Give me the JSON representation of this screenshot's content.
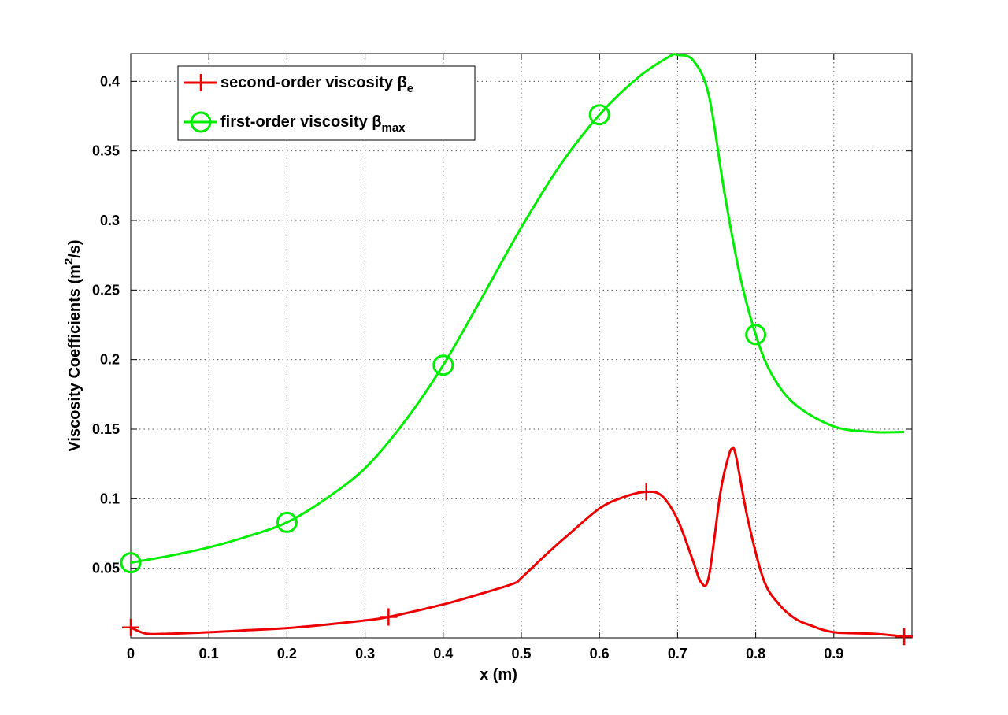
{
  "chart_data": {
    "type": "line",
    "title": "",
    "xlabel": "x (m)",
    "ylabel": {
      "main": "Viscosity Coefficients (m",
      "sup": "2",
      "tail": "/s)"
    },
    "xlim": [
      0,
      1
    ],
    "ylim": [
      0,
      0.42
    ],
    "xticks": [
      0,
      0.1,
      0.2,
      0.3,
      0.4,
      0.5,
      0.6,
      0.7,
      0.8,
      0.9
    ],
    "xtick_labels": [
      "0",
      "0.1",
      "0.2",
      "0.3",
      "0.4",
      "0.5",
      "0.6",
      "0.7",
      "0.8",
      "0.9"
    ],
    "yticks": [
      0.05,
      0.1,
      0.15,
      0.2,
      0.25,
      0.3,
      0.35,
      0.4
    ],
    "ytick_labels": [
      "0.05",
      "0.1",
      "0.15",
      "0.2",
      "0.25",
      "0.3",
      "0.35",
      "0.4"
    ],
    "grid": true,
    "legend_position": "top-left",
    "series": [
      {
        "name": "second-order viscosity β",
        "name_sub": "e",
        "color": "#ee0000",
        "marker": "plus",
        "x": [
          0,
          0.02,
          0.05,
          0.1,
          0.15,
          0.2,
          0.25,
          0.3,
          0.33,
          0.4,
          0.45,
          0.49,
          0.5,
          0.53,
          0.56,
          0.6,
          0.63,
          0.66,
          0.68,
          0.7,
          0.72,
          0.73,
          0.74,
          0.755,
          0.765,
          0.77,
          0.775,
          0.79,
          0.81,
          0.83,
          0.85,
          0.87,
          0.9,
          0.95,
          0.99
        ],
        "y": [
          0.0075,
          0.003,
          0.003,
          0.004,
          0.0055,
          0.007,
          0.0095,
          0.0125,
          0.015,
          0.024,
          0.032,
          0.039,
          0.043,
          0.059,
          0.074,
          0.093,
          0.101,
          0.105,
          0.102,
          0.085,
          0.055,
          0.04,
          0.044,
          0.105,
          0.13,
          0.136,
          0.13,
          0.085,
          0.042,
          0.024,
          0.014,
          0.009,
          0.004,
          0.003,
          0.001
        ],
        "marker_x": [
          0,
          0.33,
          0.66,
          0.99
        ],
        "marker_y": [
          0.0075,
          0.015,
          0.105,
          0.001
        ]
      },
      {
        "name": "first-order viscosity β",
        "name_sub": "max",
        "color": "#00ee00",
        "marker": "circle",
        "x": [
          0,
          0.05,
          0.1,
          0.15,
          0.2,
          0.25,
          0.3,
          0.35,
          0.4,
          0.45,
          0.5,
          0.55,
          0.6,
          0.65,
          0.69,
          0.7,
          0.72,
          0.74,
          0.76,
          0.78,
          0.8,
          0.82,
          0.85,
          0.9,
          0.95,
          0.99
        ],
        "y": [
          0.054,
          0.059,
          0.065,
          0.073,
          0.083,
          0.1,
          0.122,
          0.155,
          0.196,
          0.245,
          0.295,
          0.34,
          0.376,
          0.403,
          0.418,
          0.419,
          0.415,
          0.39,
          0.32,
          0.26,
          0.218,
          0.19,
          0.168,
          0.152,
          0.148,
          0.148
        ],
        "marker_x": [
          0,
          0.2,
          0.4,
          0.6,
          0.8
        ],
        "marker_y": [
          0.054,
          0.083,
          0.196,
          0.376,
          0.218
        ]
      }
    ]
  }
}
